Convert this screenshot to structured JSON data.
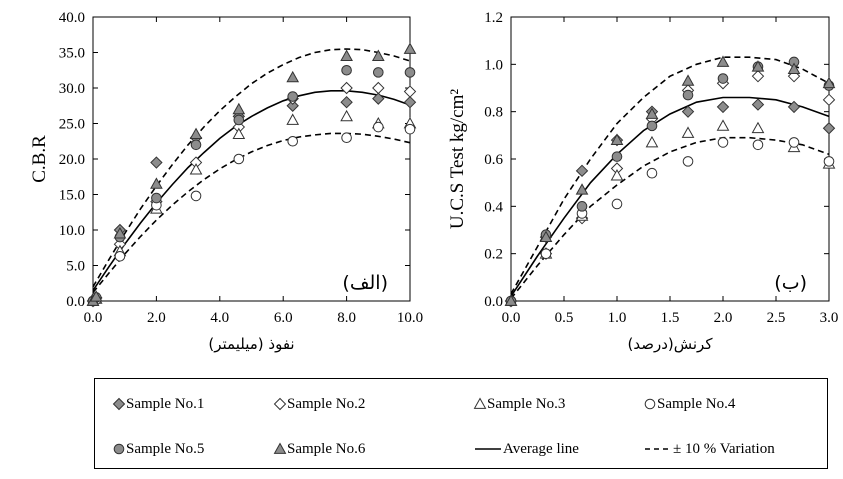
{
  "chart_data": [
    {
      "type": "scatter",
      "title": "",
      "ylabel": "C.B.R",
      "xlabel": "نفوذ (میلیمتر)",
      "panel_label": "(الف)",
      "xlim": [
        0,
        10
      ],
      "ylim": [
        0,
        40
      ],
      "xticks": [
        "0.0",
        "2.0",
        "4.0",
        "6.0",
        "8.0",
        "10.0"
      ],
      "yticks": [
        "0.0",
        "5.0",
        "10.0",
        "15.0",
        "20.0",
        "25.0",
        "30.0",
        "35.0",
        "40.0"
      ],
      "grid": false,
      "series": [
        {
          "name": "Sample No.1",
          "marker": "diamond",
          "fill": "#8c8c8c",
          "x": [
            0,
            0.1,
            0.85,
            2,
            3.25,
            4.6,
            6.3,
            8,
            9,
            10
          ],
          "y": [
            0,
            0.5,
            10,
            19.5,
            23,
            26,
            27.5,
            28,
            28.5,
            28
          ]
        },
        {
          "name": "Sample No.2",
          "marker": "diamond",
          "fill": "#ffffff",
          "x": [
            0,
            0.1,
            0.85,
            2,
            3.25,
            4.6,
            6.3,
            8,
            9,
            10
          ],
          "y": [
            0,
            0.4,
            8,
            14,
            19.5,
            24.5,
            28.5,
            30,
            30,
            29.5
          ]
        },
        {
          "name": "Sample No.3",
          "marker": "triangle",
          "fill": "#ffffff",
          "x": [
            0,
            0.1,
            0.85,
            2,
            3.25,
            4.6,
            6.3,
            8,
            9,
            10
          ],
          "y": [
            0,
            0.3,
            7,
            13,
            18.5,
            23.5,
            25.5,
            26,
            25,
            25
          ]
        },
        {
          "name": "Sample No.4",
          "marker": "circle",
          "fill": "#ffffff",
          "x": [
            0,
            0.1,
            0.85,
            2,
            3.25,
            4.6,
            6.3,
            8,
            9,
            10
          ],
          "y": [
            0,
            0.2,
            6.3,
            13.5,
            14.8,
            20,
            22.5,
            23,
            24.5,
            24.2
          ]
        },
        {
          "name": "Sample No.5",
          "marker": "circle",
          "fill": "#8c8c8c",
          "x": [
            0,
            0.1,
            0.85,
            2,
            3.25,
            4.6,
            6.3,
            8,
            9,
            10
          ],
          "y": [
            0,
            0.5,
            9,
            14.5,
            22,
            25.5,
            28.8,
            32.5,
            32.2,
            32.2
          ]
        },
        {
          "name": "Sample No.6",
          "marker": "triangle",
          "fill": "#8c8c8c",
          "x": [
            0,
            0.1,
            0.85,
            2,
            3.25,
            4.6,
            6.3,
            8,
            9,
            10
          ],
          "y": [
            0,
            0.6,
            9.5,
            16.5,
            23.5,
            27,
            31.5,
            34.5,
            34.5,
            35.5
          ]
        }
      ],
      "lines": [
        {
          "name": "Average line",
          "style": "solid",
          "x": [
            0,
            0.5,
            1,
            1.5,
            2,
            2.5,
            3,
            3.5,
            4,
            4.5,
            5,
            5.5,
            6,
            6.5,
            7,
            7.5,
            8,
            8.5,
            9,
            9.5,
            10
          ],
          "y": [
            1.5,
            4.8,
            8.0,
            11.0,
            13.8,
            16.4,
            18.8,
            20.9,
            22.9,
            24.6,
            26.0,
            27.2,
            28.2,
            28.9,
            29.4,
            29.6,
            29.6,
            29.4,
            29.0,
            28.4,
            27.6
          ]
        },
        {
          "name": "+10 % Variation",
          "style": "dashed",
          "x": [
            0,
            0.5,
            1,
            1.5,
            2,
            2.5,
            3,
            3.5,
            4,
            4.5,
            5,
            5.5,
            6,
            6.5,
            7,
            7.5,
            8,
            8.5,
            9,
            9.5,
            10
          ],
          "y": [
            2.0,
            5.8,
            9.5,
            13.0,
            16.2,
            19.2,
            22.0,
            24.5,
            26.8,
            28.8,
            30.6,
            32.1,
            33.3,
            34.3,
            35.0,
            35.4,
            35.5,
            35.4,
            35.0,
            34.5,
            33.8
          ]
        },
        {
          "name": "-10 % Variation",
          "style": "dashed",
          "x": [
            0,
            0.5,
            1,
            1.5,
            2,
            2.5,
            3,
            3.5,
            4,
            4.5,
            5,
            5.5,
            6,
            6.5,
            7,
            7.5,
            8,
            8.5,
            9,
            9.5,
            10
          ],
          "y": [
            1.2,
            3.9,
            6.6,
            9.1,
            11.4,
            13.5,
            15.4,
            17.1,
            18.6,
            19.9,
            21.0,
            21.9,
            22.6,
            23.1,
            23.4,
            23.6,
            23.6,
            23.5,
            23.2,
            22.8,
            22.3
          ]
        }
      ]
    },
    {
      "type": "scatter",
      "title": "",
      "ylabel": "U.C.S Test  kg/cm²",
      "xlabel": "کرنش(درصد)",
      "panel_label": "(ب)",
      "xlim": [
        0,
        3
      ],
      "ylim": [
        0,
        1.2
      ],
      "xticks": [
        "0.0",
        "0.5",
        "1.0",
        "1.5",
        "2.0",
        "2.5",
        "3.0"
      ],
      "yticks": [
        "0.0",
        "0.2",
        "0.4",
        "0.6",
        "0.8",
        "1.0",
        "1.2"
      ],
      "grid": false,
      "series": [
        {
          "name": "Sample No.1",
          "marker": "diamond",
          "fill": "#8c8c8c",
          "x": [
            0,
            0.33,
            0.67,
            1,
            1.33,
            1.67,
            2,
            2.33,
            2.67,
            3
          ],
          "y": [
            0,
            0.27,
            0.55,
            0.68,
            0.8,
            0.8,
            0.82,
            0.83,
            0.82,
            0.73
          ]
        },
        {
          "name": "Sample No.2",
          "marker": "diamond",
          "fill": "#ffffff",
          "x": [
            0,
            0.33,
            0.67,
            1,
            1.33,
            1.67,
            2,
            2.33,
            2.67,
            3
          ],
          "y": [
            0,
            0.2,
            0.35,
            0.56,
            0.77,
            0.89,
            0.92,
            0.95,
            0.95,
            0.85
          ]
        },
        {
          "name": "Sample No.3",
          "marker": "triangle",
          "fill": "#ffffff",
          "x": [
            0,
            0.33,
            0.67,
            1,
            1.33,
            1.67,
            2,
            2.33,
            2.67,
            3
          ],
          "y": [
            0,
            0.2,
            0.36,
            0.53,
            0.67,
            0.71,
            0.74,
            0.73,
            0.65,
            0.58
          ]
        },
        {
          "name": "Sample No.4",
          "marker": "circle",
          "fill": "#ffffff",
          "x": [
            0,
            0.33,
            0.67,
            1,
            1.33,
            1.67,
            2,
            2.33,
            2.67,
            3
          ],
          "y": [
            0,
            0.2,
            0.37,
            0.41,
            0.54,
            0.59,
            0.67,
            0.66,
            0.67,
            0.59
          ]
        },
        {
          "name": "Sample No.5",
          "marker": "circle",
          "fill": "#8c8c8c",
          "x": [
            0,
            0.33,
            0.67,
            1,
            1.33,
            1.67,
            2,
            2.33,
            2.67,
            3
          ],
          "y": [
            0,
            0.28,
            0.4,
            0.61,
            0.74,
            0.87,
            0.94,
            0.99,
            1.01,
            0.91
          ]
        },
        {
          "name": "Sample No.6",
          "marker": "triangle",
          "fill": "#8c8c8c",
          "x": [
            0,
            0.33,
            0.67,
            1,
            1.33,
            1.67,
            2,
            2.33,
            2.67,
            3
          ],
          "y": [
            0,
            0.27,
            0.47,
            0.68,
            0.79,
            0.93,
            1.01,
            0.99,
            0.98,
            0.92
          ]
        }
      ],
      "lines": [
        {
          "name": "Average line",
          "style": "solid",
          "x": [
            0,
            0.25,
            0.5,
            0.75,
            1,
            1.25,
            1.5,
            1.75,
            2,
            2.25,
            2.5,
            2.75,
            3
          ],
          "y": [
            0.02,
            0.19,
            0.35,
            0.5,
            0.62,
            0.72,
            0.79,
            0.84,
            0.86,
            0.86,
            0.85,
            0.82,
            0.78
          ]
        },
        {
          "name": "+10 % Variation",
          "style": "dashed",
          "x": [
            0,
            0.25,
            0.5,
            0.75,
            1,
            1.25,
            1.5,
            1.75,
            2,
            2.25,
            2.5,
            2.75,
            3
          ],
          "y": [
            0.03,
            0.23,
            0.43,
            0.6,
            0.75,
            0.86,
            0.95,
            1.0,
            1.03,
            1.03,
            1.02,
            0.98,
            0.92
          ]
        },
        {
          "name": "-10 % Variation",
          "style": "dashed",
          "x": [
            0,
            0.25,
            0.5,
            0.75,
            1,
            1.25,
            1.5,
            1.75,
            2,
            2.25,
            2.5,
            2.75,
            3
          ],
          "y": [
            0.01,
            0.15,
            0.28,
            0.4,
            0.49,
            0.57,
            0.63,
            0.67,
            0.69,
            0.69,
            0.68,
            0.66,
            0.62
          ]
        }
      ]
    }
  ],
  "legend": {
    "items": [
      {
        "label": "Sample No.1",
        "marker": "diamond",
        "fill": "#8c8c8c"
      },
      {
        "label": "Sample No.2",
        "marker": "diamond",
        "fill": "#ffffff"
      },
      {
        "label": "Sample No.3",
        "marker": "triangle",
        "fill": "#ffffff"
      },
      {
        "label": "Sample No.4",
        "marker": "circle",
        "fill": "#ffffff"
      },
      {
        "label": "Sample No.5",
        "marker": "circle",
        "fill": "#8c8c8c"
      },
      {
        "label": "Sample No.6",
        "marker": "triangle",
        "fill": "#8c8c8c"
      },
      {
        "label": "Average line",
        "marker": "solid-line",
        "fill": "#000000"
      },
      {
        "label": " ± 10 % Variation",
        "marker": "dashed-line",
        "fill": "#000000"
      }
    ]
  }
}
